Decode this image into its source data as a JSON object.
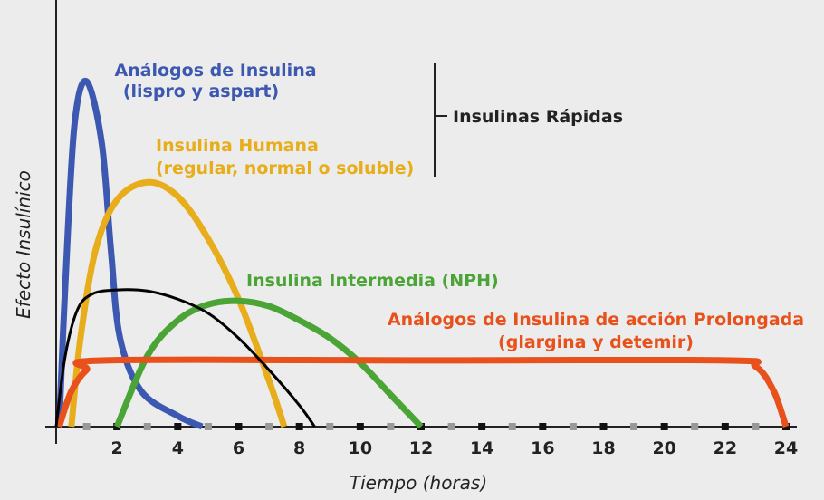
{
  "chart_data": {
    "type": "line",
    "xlabel": "Tiempo (horas)",
    "ylabel": "Efecto Insulínico",
    "xlim": [
      0,
      24
    ],
    "ylim": [
      0,
      100
    ],
    "x_ticks": [
      "2",
      "4",
      "6",
      "8",
      "10",
      "12",
      "14",
      "16",
      "18",
      "20",
      "22",
      "24"
    ],
    "grid": false,
    "bracket_label": "Insulinas Rápidas",
    "series": [
      {
        "name": "Análogos de Insulina",
        "sub": "(lispro y aspart)",
        "color": "#3d58b0",
        "points": [
          [
            0.1,
            0
          ],
          [
            0.3,
            40
          ],
          [
            0.6,
            85
          ],
          [
            1,
            97.5
          ],
          [
            1.5,
            80
          ],
          [
            1.8,
            50
          ],
          [
            2.1,
            25
          ],
          [
            2.8,
            10
          ],
          [
            4,
            3
          ],
          [
            4.8,
            0
          ]
        ]
      },
      {
        "name": "Insulina Humana",
        "sub": "(regular, normal o soluble)",
        "color": "#e8ad1a",
        "points": [
          [
            0.5,
            0
          ],
          [
            0.8,
            25
          ],
          [
            1.3,
            50
          ],
          [
            2,
            64
          ],
          [
            3,
            69
          ],
          [
            4,
            65
          ],
          [
            5,
            53
          ],
          [
            6,
            36
          ],
          [
            7,
            13
          ],
          [
            7.5,
            0
          ]
        ]
      },
      {
        "name": "Insulina Intermedia (NPH)",
        "sub": "",
        "color": "#4aa536",
        "points": [
          [
            2,
            0
          ],
          [
            3,
            20
          ],
          [
            4,
            30
          ],
          [
            5,
            34.5
          ],
          [
            6,
            35.5
          ],
          [
            7,
            34
          ],
          [
            8,
            30
          ],
          [
            9,
            25
          ],
          [
            10,
            18
          ],
          [
            11,
            9
          ],
          [
            12,
            0
          ]
        ]
      },
      {
        "name": "Análogos de Insulina de acción Prolongada",
        "sub": "(glargina y detemir)",
        "color": "#e8501c",
        "points": [
          [
            0.1,
            0
          ],
          [
            0.5,
            10
          ],
          [
            1,
            16
          ],
          [
            1.6,
            18.7
          ],
          [
            12,
            18.7
          ],
          [
            22,
            18.7
          ],
          [
            23,
            17
          ],
          [
            23.6,
            10
          ],
          [
            24,
            0
          ]
        ]
      },
      {
        "name": "",
        "sub": "",
        "color": "#000000",
        "points": [
          [
            0,
            0
          ],
          [
            0.3,
            20
          ],
          [
            0.7,
            33
          ],
          [
            1.2,
            37.5
          ],
          [
            2,
            38.6
          ],
          [
            3,
            38.3
          ],
          [
            4,
            36
          ],
          [
            5,
            32
          ],
          [
            6,
            25
          ],
          [
            7,
            16
          ],
          [
            8,
            6
          ],
          [
            8.5,
            0
          ]
        ]
      }
    ]
  }
}
